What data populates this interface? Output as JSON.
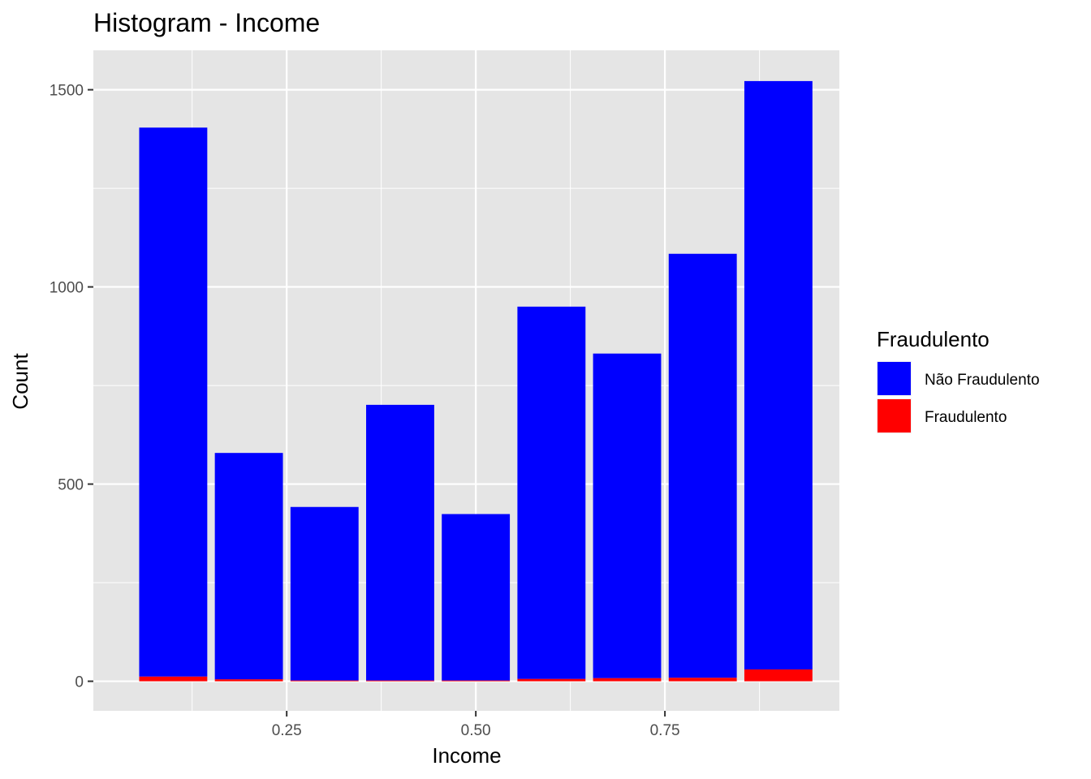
{
  "colors": {
    "panel_bg": "#e5e5e5",
    "grid": "#ffffff",
    "nao_fraudulento": "#0000ff",
    "fraudulento": "#ff0000",
    "tick_text": "#4d4d4d"
  },
  "chart_data": {
    "type": "bar",
    "stacked": true,
    "title": "Histogram - Income",
    "xlabel": "Income",
    "ylabel": "Count",
    "xlim": [
      -0.0056,
      0.9806
    ],
    "ylim": [
      -75,
      1600
    ],
    "bin_width": 0.1,
    "bin_centers": [
      0.1,
      0.2,
      0.3,
      0.4,
      0.5,
      0.6,
      0.7,
      0.8,
      0.9
    ],
    "x_ticks": [
      0.25,
      0.5,
      0.75
    ],
    "x_tick_labels": [
      "0.25",
      "0.50",
      "0.75"
    ],
    "y_ticks": [
      0,
      500,
      1000,
      1500
    ],
    "y_tick_labels": [
      "0",
      "500",
      "1000",
      "1500"
    ],
    "grid": true,
    "legend_position": "right",
    "legend_title": "Fraudulento",
    "series": [
      {
        "name": "Fraudulento",
        "color": "#ff0000",
        "values": [
          12,
          5,
          2,
          2,
          2,
          6,
          8,
          9,
          30
        ]
      },
      {
        "name": "Não Fraudulento",
        "color": "#0000ff",
        "values": [
          1392,
          574,
          440,
          699,
          422,
          944,
          823,
          1075,
          1492
        ]
      }
    ],
    "legend_order": [
      "Não Fraudulento",
      "Fraudulento"
    ]
  }
}
